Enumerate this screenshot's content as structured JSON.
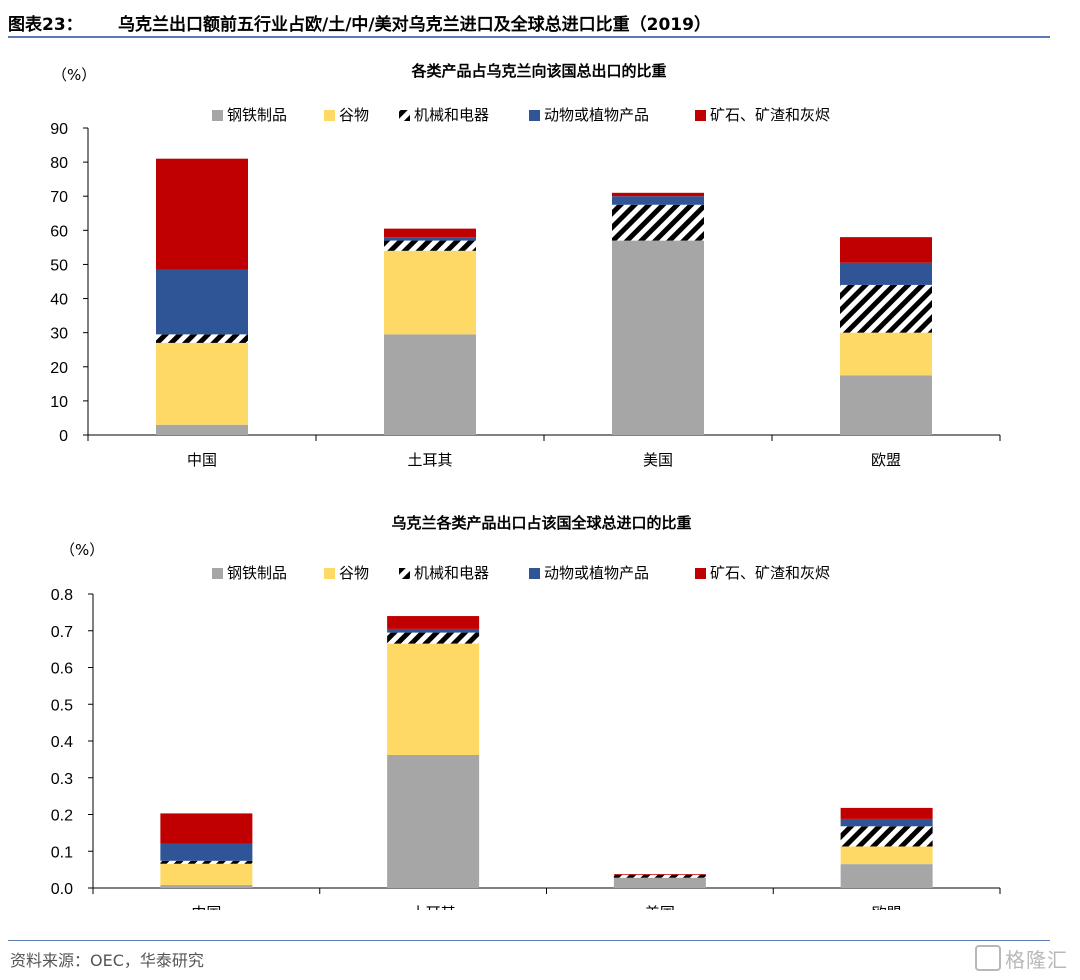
{
  "header": {
    "figure_no": "图表23：",
    "title": "乌克兰出口额前五行业占欧/土/中/美对乌克兰进口及全球总进口比重（2019）"
  },
  "footer": {
    "source": "资料来源：OEC，华泰研究"
  },
  "watermark": {
    "text": "格隆汇"
  },
  "colors": {
    "steel": "#a6a6a6",
    "grain": "#ffd966",
    "machinery": "#000000",
    "animal_plant": "#2f5597",
    "ore": "#c00000",
    "axis": "#000000",
    "rule": "#5b79b2"
  },
  "chart_data": [
    {
      "type": "bar",
      "stacked": true,
      "title": "各类产品占乌克兰向该国总出口的比重",
      "unit_label": "（%）",
      "categories": [
        "中国",
        "土耳其",
        "美国",
        "欧盟"
      ],
      "ylim": [
        0,
        90
      ],
      "yticks": [
        "0",
        "10",
        "20",
        "30",
        "40",
        "50",
        "60",
        "70",
        "80",
        "90"
      ],
      "legend_position": "top",
      "series": [
        {
          "name": "钢铁制品",
          "key": "steel",
          "values": [
            3,
            29.5,
            57,
            17.5
          ]
        },
        {
          "name": "谷物",
          "key": "grain",
          "values": [
            24,
            24.5,
            0,
            12.5
          ]
        },
        {
          "name": "机械和电器",
          "key": "machinery",
          "values": [
            2.5,
            3,
            10.5,
            14
          ]
        },
        {
          "name": "动物或植物产品",
          "key": "animal_plant",
          "values": [
            19,
            1,
            2.5,
            6.5
          ]
        },
        {
          "name": "矿石、矿渣和灰烬",
          "key": "ore",
          "values": [
            32.5,
            2.5,
            1,
            7.5
          ]
        }
      ]
    },
    {
      "type": "bar",
      "stacked": true,
      "title": "乌克兰各类产品出口占该国全球总进口的比重",
      "unit_label": "（%）",
      "categories": [
        "中国",
        "土耳其",
        "美国",
        "欧盟"
      ],
      "ylim": [
        0,
        0.8
      ],
      "yticks": [
        "0.0",
        "0.1",
        "0.2",
        "0.3",
        "0.4",
        "0.5",
        "0.6",
        "0.7",
        "0.8"
      ],
      "legend_position": "top",
      "series": [
        {
          "name": "钢铁制品",
          "key": "steel",
          "values": [
            0.008,
            0.362,
            0.028,
            0.065
          ]
        },
        {
          "name": "谷物",
          "key": "grain",
          "values": [
            0.058,
            0.303,
            0.0,
            0.048
          ]
        },
        {
          "name": "机械和电器",
          "key": "machinery",
          "values": [
            0.008,
            0.03,
            0.008,
            0.055
          ]
        },
        {
          "name": "动物或植物产品",
          "key": "animal_plant",
          "values": [
            0.047,
            0.01,
            0.0,
            0.02
          ]
        },
        {
          "name": "矿石、矿渣和灰烬",
          "key": "ore",
          "values": [
            0.082,
            0.035,
            0.002,
            0.03
          ]
        }
      ]
    }
  ]
}
